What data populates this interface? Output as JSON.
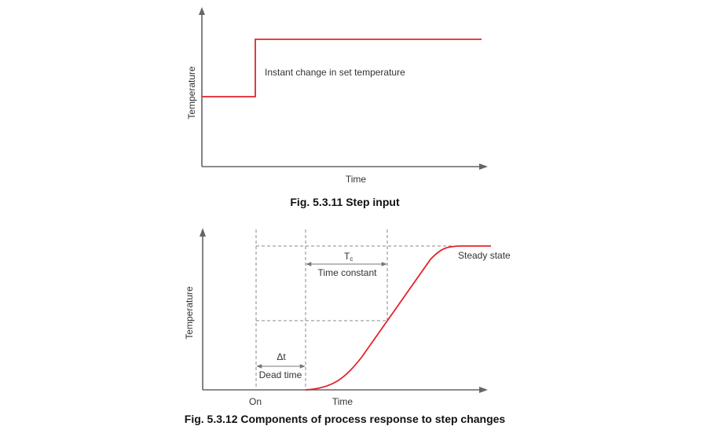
{
  "fig1": {
    "y_axis_label": "Temperature",
    "x_axis_label": "Time",
    "annotation": "Instant change in set temperature",
    "caption": "Fig. 5.3.11 Step input"
  },
  "fig2": {
    "y_axis_label": "Temperature",
    "x_label_on": "On",
    "x_label_time": "Time",
    "tc_symbol": "T",
    "tc_subscript": "c",
    "time_constant_label": "Time constant",
    "delta_t_label": "Δt",
    "dead_time_label": "Dead time",
    "steady_state_label": "Steady state",
    "caption": "Fig. 5.3.12 Components of process response to step changes"
  },
  "colors": {
    "response_curve": "#e2242b",
    "axis": "#666666"
  }
}
